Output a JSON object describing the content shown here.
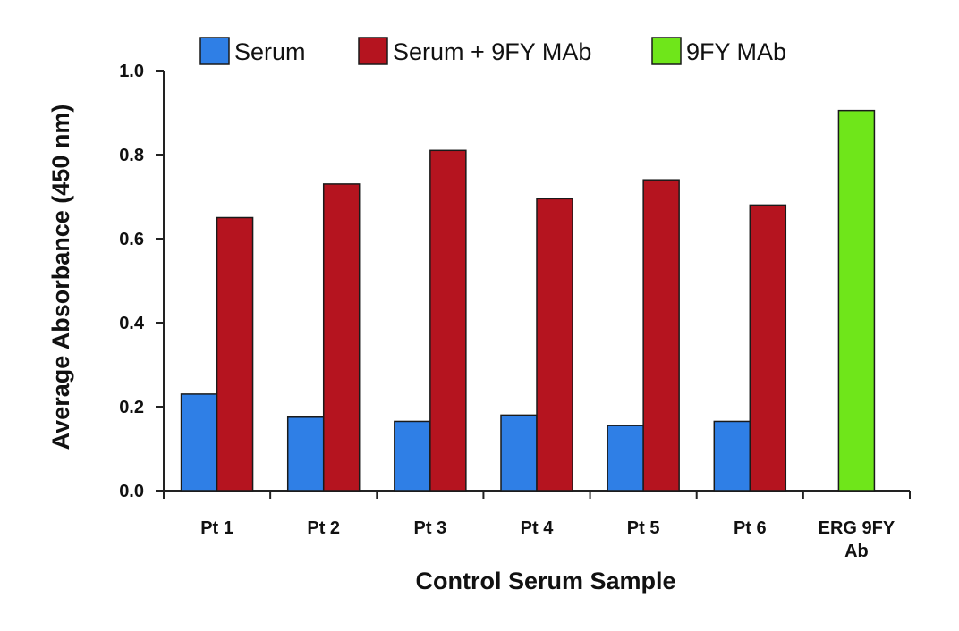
{
  "chart_data": {
    "type": "bar",
    "title": "",
    "xlabel": "Control Serum Sample",
    "ylabel": "Average Absorbance (450 nm)",
    "ylim": [
      0,
      1.0
    ],
    "yticks": [
      "0.0",
      "0.2",
      "0.4",
      "0.6",
      "0.8",
      "1.0"
    ],
    "grid": false,
    "legend_position": "top",
    "categories": [
      [
        "Pt 1"
      ],
      [
        "Pt 2"
      ],
      [
        "Pt 3"
      ],
      [
        "Pt 4"
      ],
      [
        "Pt 5"
      ],
      [
        "Pt 6"
      ],
      [
        "ERG 9FY",
        "Ab"
      ]
    ],
    "series": [
      {
        "name": "Serum",
        "color": "#2f7fe6",
        "values": [
          0.23,
          0.175,
          0.165,
          0.18,
          0.155,
          0.165,
          null
        ]
      },
      {
        "name": "Serum + 9FY MAb",
        "color": "#b5141f",
        "values": [
          0.65,
          0.73,
          0.81,
          0.695,
          0.74,
          0.68,
          null
        ]
      },
      {
        "name": "9FY MAb",
        "color": "#6fe61a",
        "values": [
          null,
          null,
          null,
          null,
          null,
          null,
          0.905
        ]
      }
    ]
  }
}
